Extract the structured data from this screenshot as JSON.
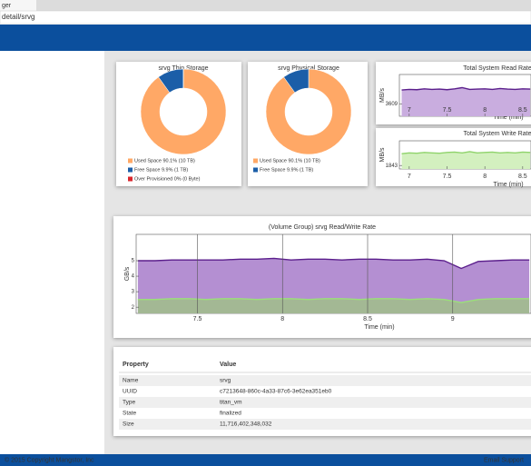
{
  "browser": {
    "tab": "ger",
    "address": "detail/srvg"
  },
  "chart_data": [
    {
      "type": "pie",
      "title": "srvg Thin Storage",
      "categories": [
        "Used Space 90.1% (10 TB)",
        "Free Space 9.9% (1 TB)",
        "Over Provisioned 0% (0 Byte)"
      ],
      "values": [
        90.1,
        9.9,
        0
      ],
      "colors": [
        "#ffa866",
        "#1b5ea8",
        "#d9262c"
      ]
    },
    {
      "type": "pie",
      "title": "srvg Physical Storage",
      "categories": [
        "Used Space 90.1% (10 TB)",
        "Free Space 9.9% (1 TB)"
      ],
      "values": [
        90.1,
        9.9
      ],
      "colors": [
        "#ffa866",
        "#1b5ea8"
      ]
    },
    {
      "type": "area",
      "title": "Total System Read Rate",
      "y_label": "MB/s",
      "x_label": "Time (min)",
      "x": [
        6.9,
        7.0,
        7.1,
        7.2,
        7.3,
        7.4,
        7.5,
        7.6,
        7.7,
        7.8,
        7.9,
        8.0,
        8.1,
        8.2,
        8.3,
        8.4,
        8.5,
        8.6
      ],
      "series": [
        {
          "color": "#5b1f8c",
          "fill": "#c9addf",
          "values": [
            3840,
            3850,
            3845,
            3860,
            3850,
            3855,
            3845,
            3860,
            3880,
            3850,
            3855,
            3860,
            3850,
            3865,
            3855,
            3850,
            3860,
            3855
          ]
        }
      ],
      "xlim": [
        6.87,
        8.61
      ],
      "ylim": [
        3400,
        4100
      ],
      "xticks": [
        7,
        7.5,
        8,
        8.5
      ],
      "yticks": [
        3609
      ]
    },
    {
      "type": "area",
      "title": "Total System Write Rate",
      "y_label": "MB/s",
      "x_label": "Time (min)",
      "x": [
        6.9,
        7.0,
        7.1,
        7.2,
        7.3,
        7.4,
        7.5,
        7.6,
        7.7,
        7.8,
        7.9,
        8.0,
        8.1,
        8.2,
        8.3,
        8.4,
        8.5,
        8.6
      ],
      "series": [
        {
          "color": "#8fd36b",
          "fill": "#d3f0bf",
          "values": [
            1990,
            2000,
            1995,
            2005,
            2000,
            1995,
            2005,
            2010,
            2000,
            2015,
            2000,
            2005,
            2010,
            2000,
            2005,
            2000,
            2010,
            2005
          ]
        }
      ],
      "xlim": [
        6.87,
        8.61
      ],
      "ylim": [
        1800,
        2150
      ],
      "xticks": [
        7,
        7.5,
        8,
        8.5
      ],
      "yticks": [
        1843
      ]
    },
    {
      "type": "area",
      "title": "(Volume Group) srvg Read/Write Rate",
      "y_label": "GB/s",
      "x_label": "Time (min)",
      "x": [
        7.15,
        7.25,
        7.35,
        7.45,
        7.55,
        7.65,
        7.75,
        7.85,
        7.95,
        8.05,
        8.15,
        8.25,
        8.35,
        8.45,
        8.55,
        8.65,
        8.75,
        8.85,
        8.95,
        9.05,
        9.15,
        9.25,
        9.35,
        9.45
      ],
      "series": [
        {
          "color": "#5b1f8c",
          "fill": "#b48fd2",
          "values": [
            5.0,
            5.0,
            5.05,
            5.05,
            5.05,
            5.05,
            5.1,
            5.1,
            5.15,
            5.05,
            5.1,
            5.1,
            5.05,
            5.1,
            5.1,
            5.05,
            5.05,
            5.1,
            5.0,
            4.5,
            4.95,
            5.0,
            5.05,
            5.05
          ]
        },
        {
          "color": "#9be07a",
          "fill": "#a3b894",
          "values": [
            2.5,
            2.5,
            2.55,
            2.55,
            2.5,
            2.55,
            2.55,
            2.5,
            2.55,
            2.55,
            2.5,
            2.55,
            2.55,
            2.5,
            2.55,
            2.55,
            2.5,
            2.55,
            2.5,
            2.3,
            2.5,
            2.55,
            2.55,
            2.55
          ]
        }
      ],
      "xlim": [
        7.14,
        9.46
      ],
      "ylim": [
        1.6,
        6.7
      ],
      "xticks": [
        7.5,
        8,
        8.5,
        9
      ],
      "yticks": [
        2,
        3,
        4,
        5
      ]
    }
  ],
  "properties": {
    "header": [
      "Property",
      "Value"
    ],
    "rows": [
      [
        "Name",
        "srvg"
      ],
      [
        "UUID",
        "c7213648-860c-4a33-87c6-3e62ea351eb0"
      ],
      [
        "Type",
        "titan_vm"
      ],
      [
        "State",
        "finalized"
      ],
      [
        "Size",
        "11,716,402,348,032"
      ]
    ]
  },
  "footer": {
    "copyright": "© 2015 Copyright Mangstor, Inc",
    "link": "Email Support"
  }
}
